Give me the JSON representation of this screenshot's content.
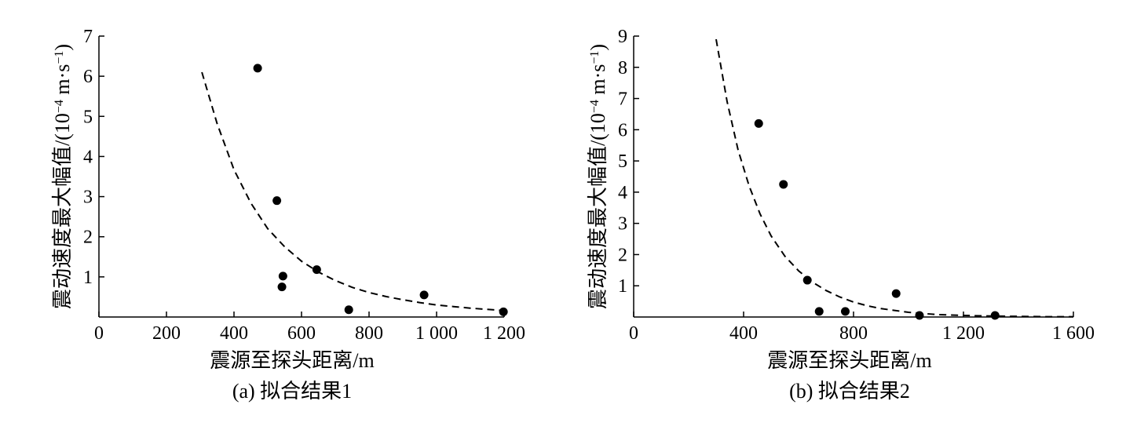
{
  "chart_data": [
    {
      "type": "scatter",
      "caption": "(a)  拟合结果1",
      "xlabel": "震源至探头距离/m",
      "ylabel": "震动速度最大幅值/(10",
      "ylabel_exp": "−4",
      "ylabel_unit": " m·s",
      "ylabel_unit_exp": "−1",
      "ylabel_close": ")",
      "xlim": [
        0,
        1200
      ],
      "ylim": [
        0,
        7
      ],
      "xticks": [
        0,
        200,
        400,
        600,
        800,
        1000,
        1200
      ],
      "xtick_labels": [
        "0",
        "200",
        "400",
        "600",
        "800",
        "1 000",
        "1 200"
      ],
      "yticks": [
        1,
        2,
        3,
        4,
        5,
        6,
        7
      ],
      "ytick_labels": [
        "1",
        "2",
        "3",
        "4",
        "5",
        "6",
        "7"
      ],
      "points": [
        {
          "x": 470,
          "y": 6.2
        },
        {
          "x": 527,
          "y": 2.9
        },
        {
          "x": 545,
          "y": 1.02
        },
        {
          "x": 542,
          "y": 0.75
        },
        {
          "x": 645,
          "y": 1.18
        },
        {
          "x": 740,
          "y": 0.18
        },
        {
          "x": 963,
          "y": 0.55
        },
        {
          "x": 1198,
          "y": 0.13
        }
      ],
      "fit": {
        "style": "dashed",
        "points": [
          [
            305,
            6.1
          ],
          [
            350,
            4.82
          ],
          [
            400,
            3.67
          ],
          [
            450,
            2.84
          ],
          [
            500,
            2.2
          ],
          [
            550,
            1.75
          ],
          [
            600,
            1.39
          ],
          [
            650,
            1.12
          ],
          [
            700,
            0.91
          ],
          [
            750,
            0.74
          ],
          [
            800,
            0.61
          ],
          [
            850,
            0.51
          ],
          [
            900,
            0.43
          ],
          [
            950,
            0.36
          ],
          [
            1000,
            0.3
          ],
          [
            1050,
            0.26
          ],
          [
            1100,
            0.22
          ],
          [
            1150,
            0.19
          ],
          [
            1200,
            0.16
          ]
        ]
      }
    },
    {
      "type": "scatter",
      "caption": "(b)  拟合结果2",
      "xlabel": "震源至探头距离/m",
      "ylabel": "震动速度最大幅值/(10",
      "ylabel_exp": "−4",
      "ylabel_unit": " m·s",
      "ylabel_unit_exp": "−1",
      "ylabel_close": ")",
      "xlim": [
        0,
        1600
      ],
      "ylim": [
        0,
        9
      ],
      "xticks": [
        0,
        400,
        800,
        1200,
        1600
      ],
      "xtick_labels": [
        "0",
        "400",
        "800",
        "1 200",
        "1 600"
      ],
      "yticks": [
        1,
        2,
        3,
        4,
        5,
        6,
        7,
        8,
        9
      ],
      "ytick_labels": [
        "1",
        "2",
        "3",
        "4",
        "5",
        "6",
        "7",
        "8",
        "9"
      ],
      "points": [
        {
          "x": 455,
          "y": 6.2
        },
        {
          "x": 545,
          "y": 4.25
        },
        {
          "x": 632,
          "y": 1.18
        },
        {
          "x": 675,
          "y": 0.18
        },
        {
          "x": 770,
          "y": 0.18
        },
        {
          "x": 955,
          "y": 0.75
        },
        {
          "x": 1040,
          "y": 0.05
        },
        {
          "x": 1315,
          "y": 0.05
        }
      ],
      "fit": {
        "style": "dashed",
        "points": [
          [
            300,
            8.9
          ],
          [
            340,
            6.9
          ],
          [
            380,
            5.35
          ],
          [
            420,
            4.2
          ],
          [
            460,
            3.3
          ],
          [
            500,
            2.6
          ],
          [
            550,
            1.95
          ],
          [
            600,
            1.48
          ],
          [
            650,
            1.12
          ],
          [
            700,
            0.85
          ],
          [
            750,
            0.64
          ],
          [
            800,
            0.48
          ],
          [
            850,
            0.36
          ],
          [
            900,
            0.27
          ],
          [
            1000,
            0.15
          ],
          [
            1100,
            0.08
          ],
          [
            1200,
            0.05
          ],
          [
            1300,
            0.03
          ],
          [
            1400,
            0.02
          ],
          [
            1500,
            0.01
          ],
          [
            1600,
            0.01
          ]
        ]
      }
    }
  ]
}
